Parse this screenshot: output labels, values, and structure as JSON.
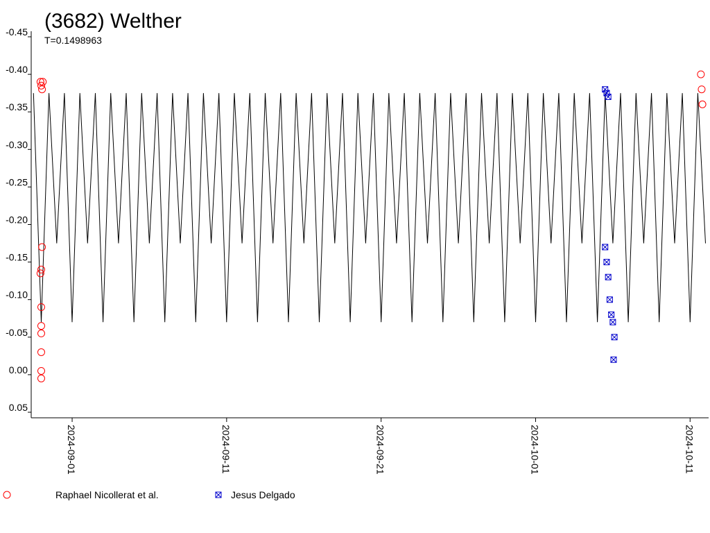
{
  "chart_data": {
    "type": "scatter",
    "title": "(3682) Welther",
    "subtitle": "T=0.1498963",
    "xlim": [
      -2.65,
      41.2
    ],
    "xticks": [
      {
        "value": 0,
        "label": "2024-09-01"
      },
      {
        "value": 10,
        "label": "2024-09-11"
      },
      {
        "value": 20,
        "label": "2024-09-21"
      },
      {
        "value": 30,
        "label": "2024-10-01"
      },
      {
        "value": 40,
        "label": "2024-10-11"
      }
    ],
    "ylim": [
      -0.45,
      0.05
    ],
    "yticks": [
      -0.45,
      {
        "value": -0.4,
        "label": "-0.40"
      },
      -0.35,
      {
        "value": -0.3,
        "label": "-0.30"
      },
      -0.25,
      {
        "value": -0.2,
        "label": "-0.20"
      },
      -0.15,
      {
        "value": -0.1,
        "label": "-0.10"
      },
      -0.05,
      {
        "value": 0,
        "label": "0.00"
      },
      0.05
    ],
    "model": {
      "color": "#000000",
      "x": [
        -2.5,
        -2,
        -1.5,
        -1,
        -0.5,
        0,
        0.5,
        1,
        1.5,
        2,
        2.5,
        3,
        3.5,
        4,
        4.5,
        5,
        5.5,
        6,
        6.5,
        7,
        7.5,
        8,
        8.5,
        9,
        9.5,
        10,
        10.5,
        11,
        11.5,
        12,
        12.5,
        13,
        13.5,
        14,
        14.5,
        15,
        15.5,
        16,
        16.5,
        17,
        17.5,
        18,
        18.5,
        19,
        19.5,
        20,
        20.5,
        21,
        21.5,
        22,
        22.5,
        23,
        23.5,
        24,
        24.5,
        25,
        25.5,
        26,
        26.5,
        27,
        27.5,
        28,
        28.5,
        29,
        29.5,
        30,
        30.5,
        31,
        31.5,
        32,
        32.5,
        33,
        33.5,
        34,
        34.5,
        35,
        35.5,
        36,
        36.5,
        37,
        37.5,
        38,
        38.5,
        39,
        39.5,
        40,
        40.5,
        41
      ],
      "values": [
        -0.375,
        -0.07,
        -0.375,
        -0.175,
        -0.375,
        -0.07,
        -0.375,
        -0.175,
        -0.375,
        -0.07,
        -0.375,
        -0.175,
        -0.375,
        -0.07,
        -0.375,
        -0.175,
        -0.375,
        -0.07,
        -0.375,
        -0.175,
        -0.375,
        -0.07,
        -0.375,
        -0.175,
        -0.375,
        -0.07,
        -0.375,
        -0.175,
        -0.375,
        -0.07,
        -0.375,
        -0.175,
        -0.375,
        -0.07,
        -0.375,
        -0.175,
        -0.375,
        -0.07,
        -0.375,
        -0.175,
        -0.375,
        -0.07,
        -0.375,
        -0.175,
        -0.375,
        -0.07,
        -0.375,
        -0.175,
        -0.375,
        -0.07,
        -0.375,
        -0.175,
        -0.375,
        -0.07,
        -0.375,
        -0.175,
        -0.375,
        -0.07,
        -0.375,
        -0.175,
        -0.375,
        -0.07,
        -0.375,
        -0.175,
        -0.375,
        -0.07,
        -0.375,
        -0.175,
        -0.375,
        -0.07,
        -0.375,
        -0.175,
        -0.375,
        -0.07,
        -0.375,
        -0.175,
        -0.375,
        -0.07,
        -0.375,
        -0.175,
        -0.375,
        -0.07,
        -0.375,
        -0.175,
        -0.375,
        -0.07,
        -0.375,
        -0.175
      ]
    },
    "series": [
      {
        "name": "Raphael Nicollerat et al.",
        "color": "#ff0000",
        "marker": "circle",
        "x": [
          -2.05,
          -2.0,
          -1.95,
          -1.9,
          -1.95,
          -2.0,
          -2.05,
          -2.0,
          -2.0,
          -2.0,
          -2.0,
          -2.0,
          -2.0,
          40.7,
          40.75,
          40.8
        ],
        "values": [
          -0.39,
          -0.385,
          -0.38,
          -0.39,
          -0.17,
          -0.14,
          -0.135,
          -0.09,
          -0.065,
          -0.055,
          -0.03,
          -0.005,
          0.005,
          -0.4,
          -0.38,
          -0.36
        ]
      },
      {
        "name": "Jesus Delgado",
        "color": "#0000cc",
        "marker": "star",
        "x": [
          34.5,
          34.6,
          34.7,
          34.5,
          34.6,
          34.7,
          34.8,
          34.9,
          35.0,
          35.1,
          35.05
        ],
        "values": [
          -0.38,
          -0.375,
          -0.37,
          -0.17,
          -0.15,
          -0.13,
          -0.1,
          -0.08,
          -0.07,
          -0.05,
          -0.02
        ]
      }
    ]
  }
}
